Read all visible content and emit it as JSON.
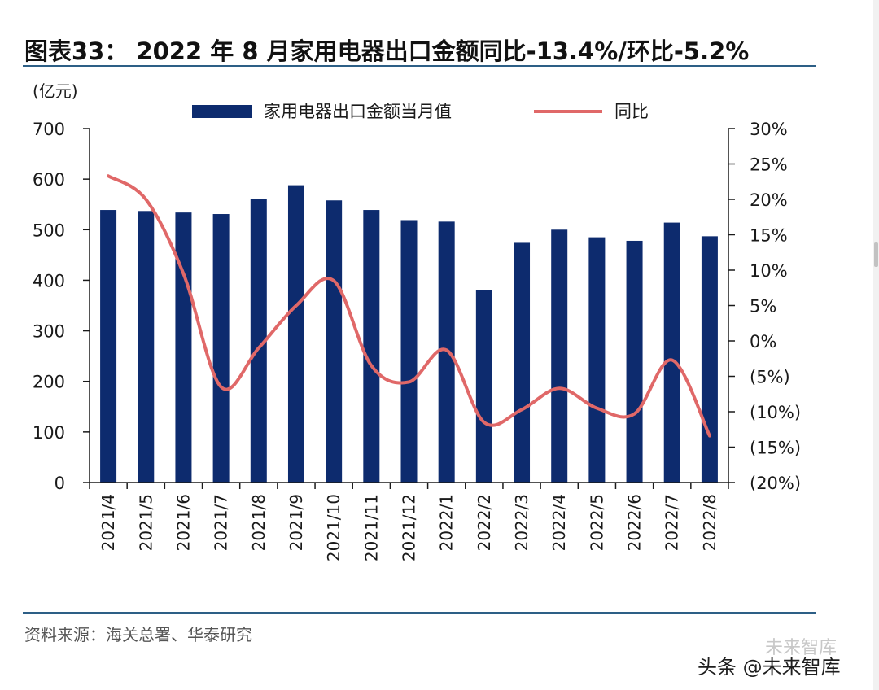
{
  "header": {
    "title": "图表33： 2022 年 8 月家用电器出口金额同比-13.4%/环比-5.2%"
  },
  "footer": {
    "source": "资料来源：海关总署、华泰研究"
  },
  "watermark": {
    "line1": "未来智库",
    "line2": "头条 @未来智库"
  },
  "colors": {
    "bar": "#0d2b6e",
    "line": "#e06868",
    "rule": "#2d5f86"
  },
  "chart_data": {
    "type": "bar+line",
    "title": "2022 年 8 月家用电器出口金额同比-13.4%/环比-5.2%",
    "y_left_unit": "(亿元)",
    "y_left_range": [
      0,
      700
    ],
    "y_left_ticks": [
      "0",
      "100",
      "200",
      "300",
      "400",
      "500",
      "600",
      "700"
    ],
    "y_right_range": [
      -20,
      30
    ],
    "y_right_ticks": [
      "(20%)",
      "(15%)",
      "(10%)",
      "(5%)",
      "0%",
      "5%",
      "10%",
      "15%",
      "20%",
      "25%",
      "30%"
    ],
    "categories": [
      "2021/4",
      "2021/5",
      "2021/6",
      "2021/7",
      "2021/8",
      "2021/9",
      "2021/10",
      "2021/11",
      "2021/12",
      "2022/1",
      "2022/2",
      "2022/3",
      "2022/4",
      "2022/5",
      "2022/6",
      "2022/7",
      "2022/8"
    ],
    "series": [
      {
        "name": "家用电器出口金额当月值",
        "type": "bar",
        "axis": "left",
        "values": [
          539,
          537,
          534,
          531,
          560,
          588,
          558,
          539,
          519,
          516,
          380,
          474,
          500,
          485,
          478,
          514,
          487
        ]
      },
      {
        "name": "同比",
        "type": "line",
        "axis": "right",
        "values": [
          23.3,
          20.0,
          9.5,
          -6.5,
          -1.0,
          5.0,
          8.5,
          -3.5,
          -5.8,
          -1.3,
          -11.5,
          -9.7,
          -6.7,
          -9.5,
          -10.3,
          -2.7,
          -13.4
        ]
      }
    ],
    "legend": [
      "家用电器出口金额当月值",
      "同比"
    ]
  }
}
